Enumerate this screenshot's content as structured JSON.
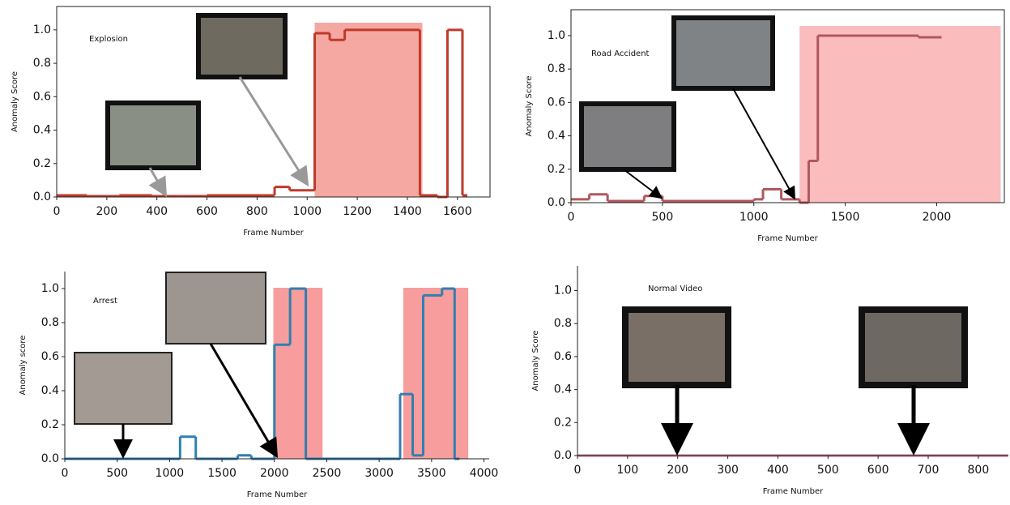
{
  "chart_data": [
    {
      "type": "line",
      "step": true,
      "annotation": "Explosion",
      "x_label": "Frame Number",
      "y_label": "Anomaly Score",
      "xlim": [
        0,
        1730
      ],
      "ylim": [
        0,
        1.14
      ],
      "xticks": [
        0,
        200,
        400,
        600,
        800,
        1000,
        1200,
        1400,
        1600
      ],
      "yticks": [
        {
          "value": 0,
          "label": "0.0"
        },
        {
          "value": 0.2,
          "label": "0.2"
        },
        {
          "value": 0.4,
          "label": "0.4"
        },
        {
          "value": 0.6,
          "label": "0.6"
        },
        {
          "value": 0.8,
          "label": "0.8"
        },
        {
          "value": 1,
          "label": "1.0"
        }
      ],
      "highlight_spans": [
        [
          1030,
          1460
        ]
      ],
      "highlight_color": "#f28b82",
      "series": [
        {
          "color": "#c0392b",
          "x": [
            0,
            120,
            250,
            380,
            500,
            600,
            870,
            930,
            1030,
            1090,
            1150,
            1450,
            1520,
            1560,
            1620
          ],
          "values": [
            0.01,
            0.005,
            0.01,
            0.005,
            0.005,
            0.01,
            0.06,
            0.04,
            0.98,
            0.94,
            1.0,
            0.01,
            0.0,
            1.0,
            0.01
          ]
        }
      ]
    },
    {
      "type": "line",
      "step": true,
      "annotation": "Road Accident",
      "x_label": "Frame Number",
      "y_label": "Anomaly Score",
      "xlim": [
        0,
        2370
      ],
      "ylim": [
        0,
        1.155
      ],
      "xticks": [
        0,
        500,
        1000,
        1500,
        2000
      ],
      "yticks": [
        {
          "value": 0,
          "label": "0.0"
        },
        {
          "value": 0.2,
          "label": "0.2"
        },
        {
          "value": 0.4,
          "label": "0.4"
        },
        {
          "value": 0.6,
          "label": "0.6"
        },
        {
          "value": 0.8,
          "label": "0.8"
        },
        {
          "value": 1,
          "label": "1.0"
        }
      ],
      "highlight_spans": [
        [
          1250,
          2350
        ]
      ],
      "highlight_color": "#f8a5a5",
      "series": [
        {
          "color": "#b0585e",
          "x": [
            0,
            100,
            200,
            400,
            500,
            1000,
            1050,
            1150,
            1250,
            1300,
            1350,
            1900,
            2000
          ],
          "values": [
            0.02,
            0.05,
            0.01,
            0.04,
            0.01,
            0.02,
            0.08,
            0.02,
            0.0,
            0.25,
            1.0,
            0.99,
            0.99
          ]
        }
      ]
    },
    {
      "type": "line",
      "step": true,
      "annotation": "Arrest",
      "x_label": "Frame Number",
      "y_label": "Anomaly score",
      "xlim": [
        0,
        4050
      ],
      "ylim": [
        0,
        1.1
      ],
      "xticks": [
        0,
        500,
        1000,
        1500,
        2000,
        2500,
        3000,
        3500,
        4000
      ],
      "yticks": [
        {
          "value": 0,
          "label": "0.0"
        },
        {
          "value": 0.2,
          "label": "0.2"
        },
        {
          "value": 0.4,
          "label": "0.4"
        },
        {
          "value": 0.6,
          "label": "0.6"
        },
        {
          "value": 0.8,
          "label": "0.8"
        },
        {
          "value": 1,
          "label": "1.0"
        }
      ],
      "highlight_spans": [
        [
          1990,
          2460
        ],
        [
          3230,
          3850
        ]
      ],
      "highlight_color": "#f47c7c",
      "series": [
        {
          "color": "#2f7fb0",
          "x": [
            0,
            1100,
            1250,
            1650,
            1780,
            2000,
            2150,
            2300,
            3200,
            3320,
            3420,
            3600,
            3720
          ],
          "values": [
            0.0,
            0.13,
            0.0,
            0.02,
            0.0,
            0.67,
            1.0,
            0.0,
            0.38,
            0.02,
            0.96,
            1.0,
            0.0
          ]
        }
      ]
    },
    {
      "type": "line",
      "step": true,
      "annotation": "Normal Video",
      "x_label": "Frame Number",
      "y_label": "Anomaly Score",
      "xlim": [
        0,
        860
      ],
      "ylim": [
        0,
        1.15
      ],
      "xticks": [
        0,
        100,
        200,
        300,
        400,
        500,
        600,
        700,
        800
      ],
      "yticks": [
        {
          "value": 0,
          "label": "0.0"
        },
        {
          "value": 0.2,
          "label": "0.2"
        },
        {
          "value": 0.4,
          "label": "0.4"
        },
        {
          "value": 0.6,
          "label": "0.6"
        },
        {
          "value": 0.8,
          "label": "0.8"
        },
        {
          "value": 1,
          "label": "1.0"
        }
      ],
      "highlight_spans": [],
      "highlight_color": "#f8a5a5",
      "series": [
        {
          "color": "#c07090",
          "x": [
            0,
            850
          ],
          "values": [
            0.0,
            0.0
          ]
        }
      ]
    }
  ]
}
